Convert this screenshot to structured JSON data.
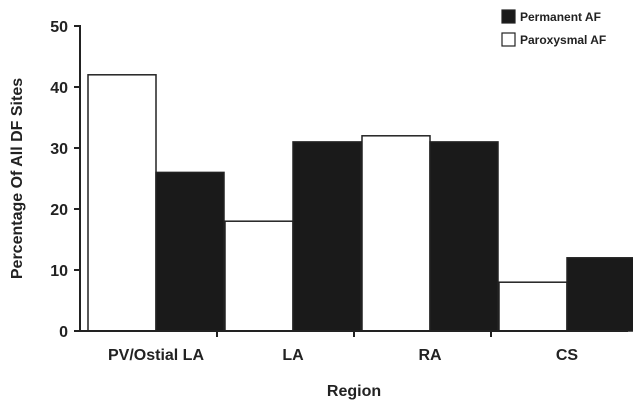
{
  "chart_data": {
    "type": "bar",
    "categories": [
      "PV/Ostial LA",
      "LA",
      "RA",
      "CS"
    ],
    "series": [
      {
        "name": "Paroxysmal AF",
        "values": [
          42,
          18,
          32,
          8
        ],
        "color": "#ffffff"
      },
      {
        "name": "Permanent AF",
        "values": [
          26,
          31,
          31,
          12
        ],
        "color": "#1a1a1a"
      }
    ],
    "xlabel": "Region",
    "ylabel": "Percentage Of All DF Sites",
    "ylim": [
      0,
      50
    ],
    "yticks": [
      0,
      10,
      20,
      30,
      40,
      50
    ],
    "grid": false,
    "legend": {
      "placement": "top-right",
      "order": [
        "Permanent AF",
        "Paroxysmal AF"
      ]
    }
  }
}
